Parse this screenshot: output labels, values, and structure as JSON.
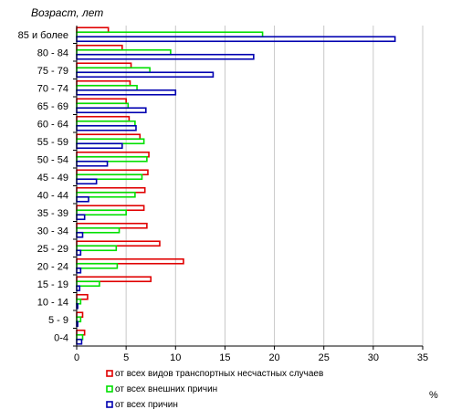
{
  "chart_data": {
    "type": "bar",
    "orientation": "horizontal",
    "ylabel": "Возраст, лет",
    "xlabel": "%",
    "xlim": [
      0,
      35
    ],
    "xticks": [
      0,
      5,
      10,
      15,
      20,
      25,
      30,
      35
    ],
    "grid": "vertical",
    "legend_position": "bottom",
    "categories": [
      "0-4",
      "5 - 9",
      "10 - 14",
      "15 - 19",
      "20 - 24",
      "25 - 29",
      "30 - 34",
      "35 - 39",
      "40 - 44",
      "45 - 49",
      "50 - 54",
      "55 - 59",
      "60 - 64",
      "65 - 69",
      "70 - 74",
      "75 - 79",
      "80 - 84",
      "85 и более"
    ],
    "series": [
      {
        "name": "от всех видов транспортных несчастных случаев",
        "color": "#e00000",
        "values": [
          0.8,
          0.6,
          1.1,
          7.5,
          10.8,
          8.4,
          7.1,
          6.8,
          6.9,
          7.2,
          7.3,
          6.4,
          5.3,
          5.0,
          5.4,
          5.5,
          4.6,
          3.2
        ]
      },
      {
        "name": "от всех внешних причин",
        "color": "#00e000",
        "values": [
          0.6,
          0.4,
          0.4,
          2.3,
          4.1,
          4.0,
          4.3,
          5.0,
          5.9,
          6.6,
          7.1,
          6.8,
          5.9,
          5.2,
          6.1,
          7.4,
          9.5,
          18.8
        ]
      },
      {
        "name": "от всех причин",
        "color": "#0000b0",
        "values": [
          0.5,
          0.1,
          0.1,
          0.3,
          0.4,
          0.4,
          0.6,
          0.8,
          1.2,
          2.0,
          3.1,
          4.6,
          6.0,
          7.0,
          10.0,
          13.8,
          17.9,
          32.2
        ]
      }
    ]
  }
}
